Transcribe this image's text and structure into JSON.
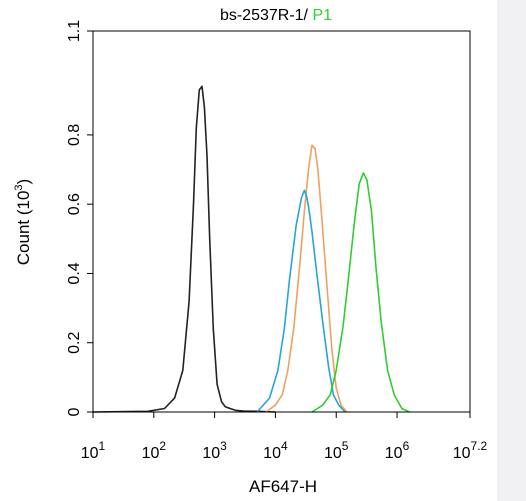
{
  "chart_data": {
    "type": "line",
    "title_parts": [
      "bs-2537R-1/ ",
      "P1"
    ],
    "title_colors": [
      "#000000",
      "#33cc33"
    ],
    "xlabel": "AF647-H",
    "ylabel": "Count (10^3)",
    "ylabel_parts": {
      "base": "Count (10",
      "exp": "3",
      "tail": ")"
    },
    "x_scale": "log",
    "xlim": [
      10,
      15848931.92
    ],
    "ylim": [
      0,
      1.1
    ],
    "x_ticks": [
      {
        "base": "10",
        "exp": "1",
        "value": 10
      },
      {
        "base": "10",
        "exp": "2",
        "value": 100
      },
      {
        "base": "10",
        "exp": "3",
        "value": 1000
      },
      {
        "base": "10",
        "exp": "4",
        "value": 10000
      },
      {
        "base": "10",
        "exp": "5",
        "value": 100000
      },
      {
        "base": "10",
        "exp": "6",
        "value": 1000000
      },
      {
        "base": "10",
        "exp": "7.2",
        "value": 15848931.92
      }
    ],
    "y_ticks": [
      "0",
      "0.2",
      "0.4",
      "0.6",
      "0.8",
      "1.1"
    ],
    "y_tick_values": [
      0,
      0.2,
      0.4,
      0.6,
      0.8,
      1.1
    ],
    "grid": false,
    "series": [
      {
        "color": "#222222",
        "x": [
          10,
          80,
          150,
          220,
          300,
          380,
          450,
          500,
          560,
          620,
          680,
          750,
          830,
          950,
          1100,
          1300,
          1500,
          1800,
          2200,
          3000,
          5000,
          10000
        ],
        "y": [
          0,
          0.002,
          0.01,
          0.04,
          0.12,
          0.32,
          0.6,
          0.82,
          0.93,
          0.94,
          0.88,
          0.74,
          0.5,
          0.24,
          0.08,
          0.03,
          0.015,
          0.01,
          0.005,
          0.003,
          0.002,
          0
        ]
      },
      {
        "color": "#f0a060",
        "x": [
          7000,
          10000,
          13000,
          16000,
          20000,
          25000,
          30000,
          35000,
          40000,
          45000,
          50000,
          58000,
          70000,
          85000,
          100000,
          120000,
          150000
        ],
        "y": [
          0,
          0.02,
          0.05,
          0.12,
          0.24,
          0.42,
          0.58,
          0.7,
          0.77,
          0.76,
          0.7,
          0.56,
          0.37,
          0.18,
          0.07,
          0.02,
          0
        ]
      },
      {
        "color": "#2aa4d8",
        "x": [
          5000,
          8000,
          11000,
          14000,
          17000,
          22000,
          27000,
          30000,
          33000,
          36000,
          40000,
          48000,
          60000,
          75000,
          90000,
          110000,
          140000
        ],
        "y": [
          0,
          0.04,
          0.12,
          0.24,
          0.38,
          0.54,
          0.62,
          0.64,
          0.62,
          0.58,
          0.52,
          0.4,
          0.26,
          0.13,
          0.05,
          0.02,
          0
        ]
      },
      {
        "color": "#33cc33",
        "x": [
          40000,
          60000,
          80000,
          100000,
          130000,
          160000,
          200000,
          240000,
          280000,
          320000,
          380000,
          450000,
          550000,
          700000,
          900000,
          1200000,
          1600000
        ],
        "y": [
          0,
          0.02,
          0.05,
          0.12,
          0.25,
          0.39,
          0.55,
          0.66,
          0.69,
          0.67,
          0.58,
          0.42,
          0.26,
          0.12,
          0.05,
          0.01,
          0
        ]
      }
    ]
  }
}
